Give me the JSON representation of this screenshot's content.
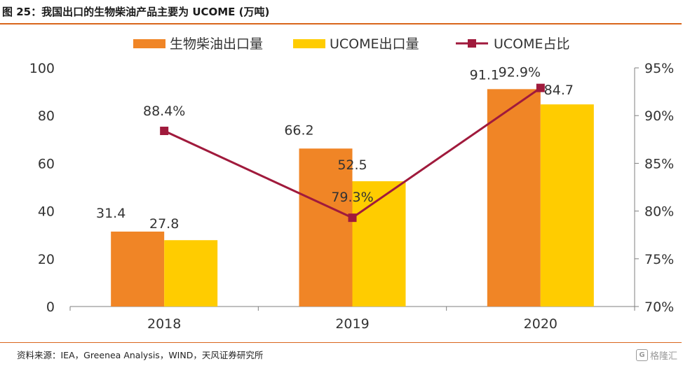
{
  "figure": {
    "title": "图 25：我国出口的生物柴油产品主要为 UCOME (万吨)",
    "source": "资料来源：IEA，Greenea Analysis，WIND，天风证券研究所",
    "watermark": "格隆汇",
    "watermark_icon": "G"
  },
  "chart_data": {
    "type": "bar",
    "title": "我国出口的生物柴油产品主要为 UCOME (万吨)",
    "categories": [
      "2018",
      "2019",
      "2020"
    ],
    "series": [
      {
        "name": "生物柴油出口量",
        "kind": "bar",
        "axis": "left",
        "color": "#f08526",
        "values": [
          31.4,
          66.2,
          91.1
        ],
        "labels": [
          "31.4",
          "66.2",
          "91.1"
        ]
      },
      {
        "name": "UCOME出口量",
        "kind": "bar",
        "axis": "left",
        "color": "#ffcc00",
        "values": [
          27.8,
          52.5,
          84.7
        ],
        "labels": [
          "27.8",
          "52.5",
          "84.7"
        ]
      },
      {
        "name": "UCOME占比",
        "kind": "line",
        "axis": "right",
        "color": "#a01a3c",
        "values": [
          88.4,
          79.3,
          92.9
        ],
        "labels": [
          "88.4%",
          "79.3%",
          "92.9%"
        ]
      }
    ],
    "y_left": {
      "min": 0,
      "max": 100,
      "ticks": [
        0,
        20,
        40,
        60,
        80,
        100
      ],
      "tick_labels": [
        "0",
        "20",
        "40",
        "60",
        "80",
        "100"
      ]
    },
    "y_right": {
      "min": 70,
      "max": 95,
      "ticks": [
        70,
        75,
        80,
        85,
        90,
        95
      ],
      "tick_labels": [
        "70%",
        "75%",
        "80%",
        "85%",
        "90%",
        "95%"
      ]
    },
    "legend": "top",
    "grid": false
  }
}
